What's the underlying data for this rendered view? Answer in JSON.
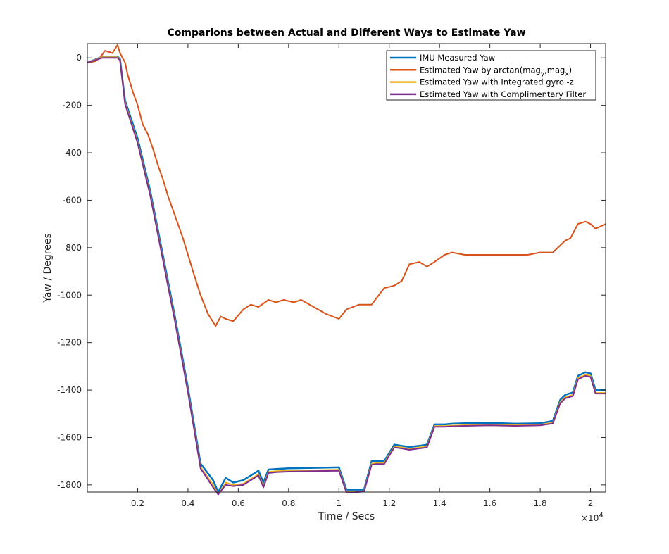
{
  "chart_data": {
    "type": "line",
    "title": "Comparions between Actual and Different Ways to Estimate Yaw",
    "xlabel": "Time / Secs",
    "ylabel": "Yaw / Degrees",
    "x_exponent_label": "×10",
    "x_exponent_power": "4",
    "xlim": [
      0,
      20600
    ],
    "ylim": [
      -1830,
      60
    ],
    "xticks": [
      2000,
      4000,
      6000,
      8000,
      10000,
      12000,
      14000,
      16000,
      18000,
      20000
    ],
    "xtick_labels": [
      "0.2",
      "0.4",
      "0.6",
      "0.8",
      "1",
      "1.2",
      "1.4",
      "1.6",
      "1.8",
      "2"
    ],
    "yticks": [
      0,
      -200,
      -400,
      -600,
      -800,
      -1000,
      -1200,
      -1400,
      -1600,
      -1800
    ],
    "ytick_labels": [
      "0",
      "-200",
      "-400",
      "-600",
      "-800",
      "-1000",
      "-1200",
      "-1400",
      "-1600",
      "-1800"
    ],
    "grid": false,
    "legend_position": "top-right",
    "series": [
      {
        "name": "IMU Measured Yaw",
        "color": "#0072BD",
        "x": [
          0,
          600,
          1200,
          1300,
          1500,
          2000,
          2500,
          3000,
          3500,
          4000,
          4500,
          5000,
          5200,
          5500,
          5800,
          6200,
          6500,
          6800,
          7000,
          7200,
          7500,
          8000,
          9000,
          10000,
          10300,
          10500,
          11000,
          11300,
          11500,
          11800,
          12200,
          12500,
          12800,
          13200,
          13500,
          13800,
          14200,
          14500,
          15000,
          16000,
          17000,
          18000,
          18500,
          18800,
          19000,
          19300,
          19500,
          19800,
          20000,
          20200,
          20600
        ],
        "y": [
          -20,
          5,
          5,
          -5,
          -180,
          -340,
          -560,
          -830,
          -1100,
          -1390,
          -1710,
          -1780,
          -1830,
          -1770,
          -1790,
          -1780,
          -1760,
          -1740,
          -1790,
          -1735,
          -1733,
          -1730,
          -1728,
          -1726,
          -1820,
          -1820,
          -1820,
          -1700,
          -1700,
          -1700,
          -1630,
          -1635,
          -1640,
          -1635,
          -1630,
          -1545,
          -1545,
          -1542,
          -1540,
          -1538,
          -1542,
          -1540,
          -1530,
          -1440,
          -1420,
          -1410,
          -1340,
          -1325,
          -1330,
          -1400,
          -1400
        ]
      },
      {
        "name": "Estimated Yaw by arctan(mag_y,mag_x)",
        "color": "#D95319",
        "x": [
          0,
          300,
          500,
          700,
          1000,
          1200,
          1300,
          1500,
          1600,
          1800,
          2000,
          2200,
          2400,
          2600,
          2800,
          3000,
          3200,
          3400,
          3600,
          3800,
          4000,
          4200,
          4500,
          4800,
          5100,
          5300,
          5500,
          5800,
          6200,
          6500,
          6800,
          7200,
          7500,
          7800,
          8200,
          8500,
          9000,
          9500,
          10000,
          10300,
          10800,
          11300,
          11800,
          12200,
          12500,
          12800,
          13200,
          13500,
          13800,
          14200,
          14500,
          15000,
          15500,
          16000,
          16500,
          17000,
          17500,
          18000,
          18500,
          18800,
          19000,
          19200,
          19500,
          19800,
          20000,
          20200,
          20600
        ],
        "y": [
          -20,
          -15,
          0,
          30,
          20,
          55,
          20,
          -20,
          -70,
          -140,
          -200,
          -280,
          -320,
          -380,
          -450,
          -510,
          -580,
          -640,
          -700,
          -760,
          -830,
          -900,
          -1000,
          -1080,
          -1130,
          -1090,
          -1100,
          -1110,
          -1060,
          -1040,
          -1050,
          -1020,
          -1030,
          -1020,
          -1030,
          -1020,
          -1050,
          -1080,
          -1100,
          -1060,
          -1040,
          -1040,
          -970,
          -960,
          -940,
          -870,
          -860,
          -880,
          -860,
          -830,
          -820,
          -830,
          -830,
          -830,
          -830,
          -830,
          -830,
          -820,
          -820,
          -790,
          -770,
          -760,
          -700,
          -690,
          -700,
          -720,
          -700
        ]
      },
      {
        "name": "Estimated Yaw with Integrated gyro -z",
        "color": "#EDB120",
        "x": [
          0,
          600,
          1200,
          1300,
          1500,
          2000,
          2500,
          3000,
          3500,
          4000,
          4500,
          5000,
          5200,
          5500,
          5800,
          6200,
          6500,
          6800,
          7000,
          7200,
          7500,
          8000,
          9000,
          10000,
          10300,
          10500,
          11000,
          11300,
          11500,
          11800,
          12200,
          12500,
          12800,
          13200,
          13500,
          13800,
          14200,
          14500,
          15000,
          16000,
          17000,
          18000,
          18500,
          18800,
          19000,
          19300,
          19500,
          19800,
          20000,
          20200,
          20600
        ],
        "y": [
          -20,
          3,
          3,
          -10,
          -190,
          -355,
          -575,
          -845,
          -1115,
          -1405,
          -1725,
          -1800,
          -1840,
          -1790,
          -1800,
          -1795,
          -1775,
          -1755,
          -1805,
          -1745,
          -1742,
          -1740,
          -1738,
          -1736,
          -1830,
          -1830,
          -1826,
          -1710,
          -1708,
          -1708,
          -1638,
          -1642,
          -1648,
          -1642,
          -1638,
          -1552,
          -1552,
          -1550,
          -1548,
          -1546,
          -1548,
          -1546,
          -1538,
          -1450,
          -1430,
          -1420,
          -1350,
          -1335,
          -1340,
          -1412,
          -1412
        ]
      },
      {
        "name": "Estimated Yaw with Complimentary Filter",
        "color": "#7E2F8E",
        "x": [
          0,
          600,
          1200,
          1300,
          1500,
          2000,
          2500,
          3000,
          3500,
          4000,
          4500,
          5000,
          5200,
          5500,
          5800,
          6200,
          6500,
          6800,
          7000,
          7200,
          7500,
          8000,
          9000,
          10000,
          10300,
          10500,
          11000,
          11300,
          11500,
          11800,
          12200,
          12500,
          12800,
          13200,
          13500,
          13800,
          14200,
          14500,
          15000,
          16000,
          17000,
          18000,
          18500,
          18800,
          19000,
          19300,
          19500,
          19800,
          20000,
          20200,
          20600
        ],
        "y": [
          -20,
          0,
          0,
          -10,
          -195,
          -360,
          -580,
          -850,
          -1120,
          -1410,
          -1730,
          -1810,
          -1840,
          -1800,
          -1805,
          -1800,
          -1780,
          -1760,
          -1810,
          -1750,
          -1746,
          -1744,
          -1742,
          -1740,
          -1832,
          -1832,
          -1828,
          -1715,
          -1712,
          -1712,
          -1642,
          -1646,
          -1652,
          -1646,
          -1642,
          -1555,
          -1555,
          -1553,
          -1551,
          -1549,
          -1551,
          -1549,
          -1541,
          -1455,
          -1435,
          -1425,
          -1355,
          -1340,
          -1345,
          -1415,
          -1415
        ]
      }
    ],
    "legend": [
      {
        "prefix": "IMU Measured Yaw",
        "sub1": "",
        "mid": "",
        "sub2": "",
        "suffix": ""
      },
      {
        "prefix": "Estimated Yaw by arctan(mag",
        "sub1": "y",
        "mid": ",mag",
        "sub2": "x",
        "suffix": ")"
      },
      {
        "prefix": "Estimated Yaw with Integrated gyro -z",
        "sub1": "",
        "mid": "",
        "sub2": "",
        "suffix": ""
      },
      {
        "prefix": "Estimated Yaw with Complimentary Filter",
        "sub1": "",
        "mid": "",
        "sub2": "",
        "suffix": ""
      }
    ]
  }
}
